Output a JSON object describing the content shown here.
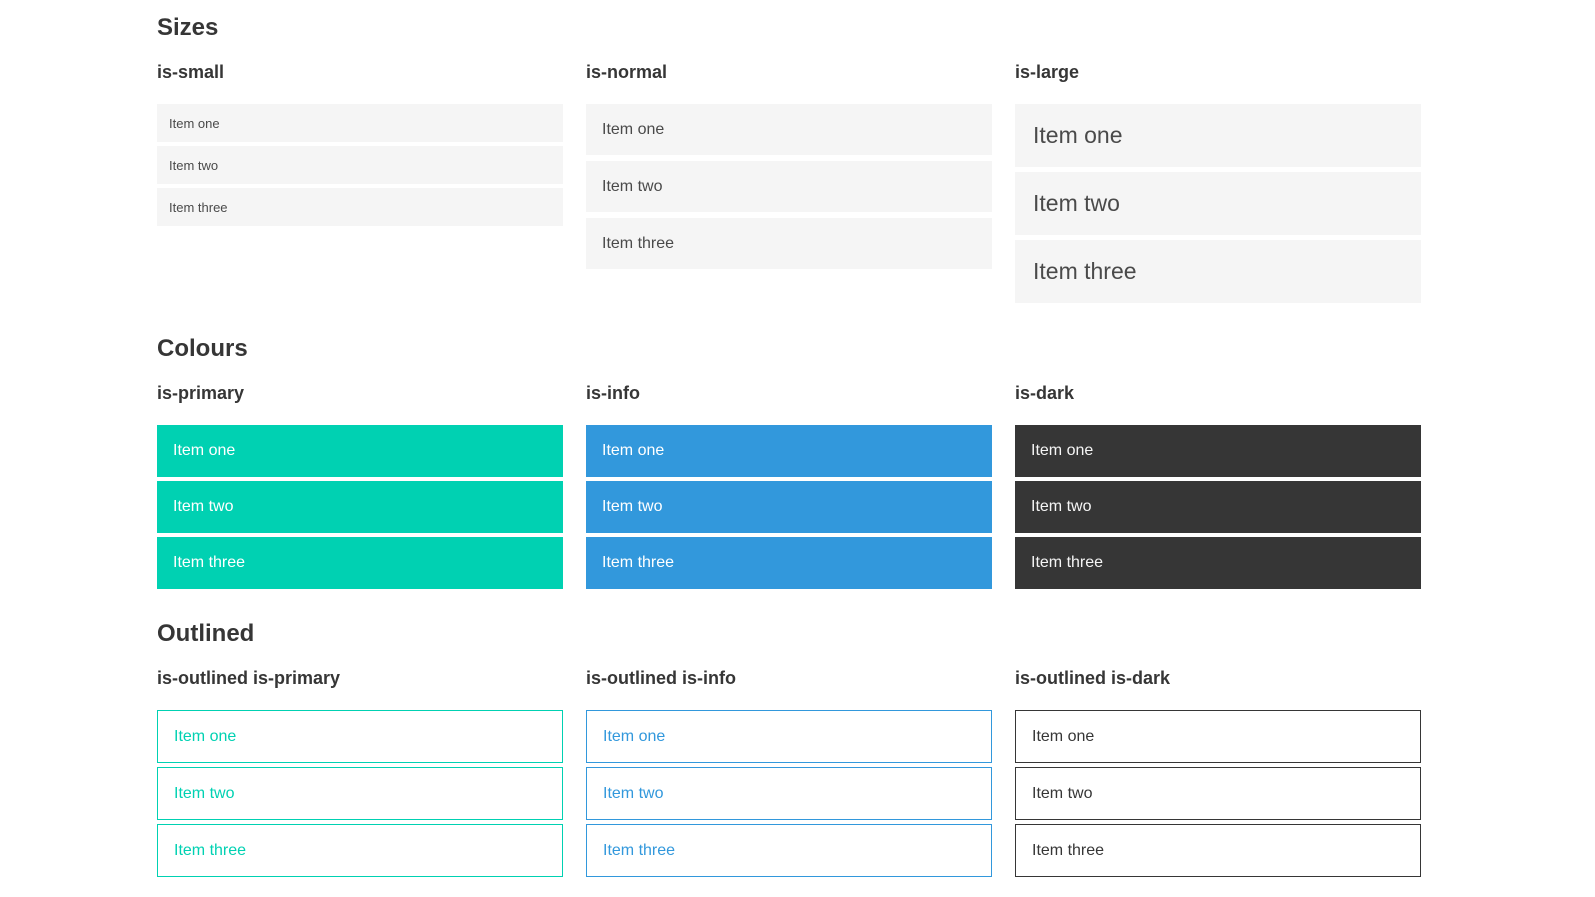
{
  "colors": {
    "primary": "#00d1b2",
    "info": "#3298dc",
    "dark": "#363636",
    "item_background": "#f5f5f5",
    "item_text": "#4a4a4a",
    "heading_text": "#363636",
    "colored_item_text": "#ffffff",
    "dark_item_text": "#f5f5f5",
    "page_background": "#ffffff"
  },
  "sections": [
    {
      "title": "Sizes",
      "groups": [
        {
          "label": "is-small",
          "items": [
            "Item one",
            "Item two",
            "Item three"
          ]
        },
        {
          "label": "is-normal",
          "items": [
            "Item one",
            "Item two",
            "Item three"
          ]
        },
        {
          "label": "is-large",
          "items": [
            "Item one",
            "Item two",
            "Item three"
          ]
        }
      ]
    },
    {
      "title": "Colours",
      "groups": [
        {
          "label": "is-primary",
          "items": [
            "Item one",
            "Item two",
            "Item three"
          ]
        },
        {
          "label": "is-info",
          "items": [
            "Item one",
            "Item two",
            "Item three"
          ]
        },
        {
          "label": "is-dark",
          "items": [
            "Item one",
            "Item two",
            "Item three"
          ]
        }
      ]
    },
    {
      "title": "Outlined",
      "groups": [
        {
          "label": "is-outlined is-primary",
          "items": [
            "Item one",
            "Item two",
            "Item three"
          ]
        },
        {
          "label": "is-outlined is-info",
          "items": [
            "Item one",
            "Item two",
            "Item three"
          ]
        },
        {
          "label": "is-outlined is-dark",
          "items": [
            "Item one",
            "Item two",
            "Item three"
          ]
        }
      ]
    }
  ]
}
